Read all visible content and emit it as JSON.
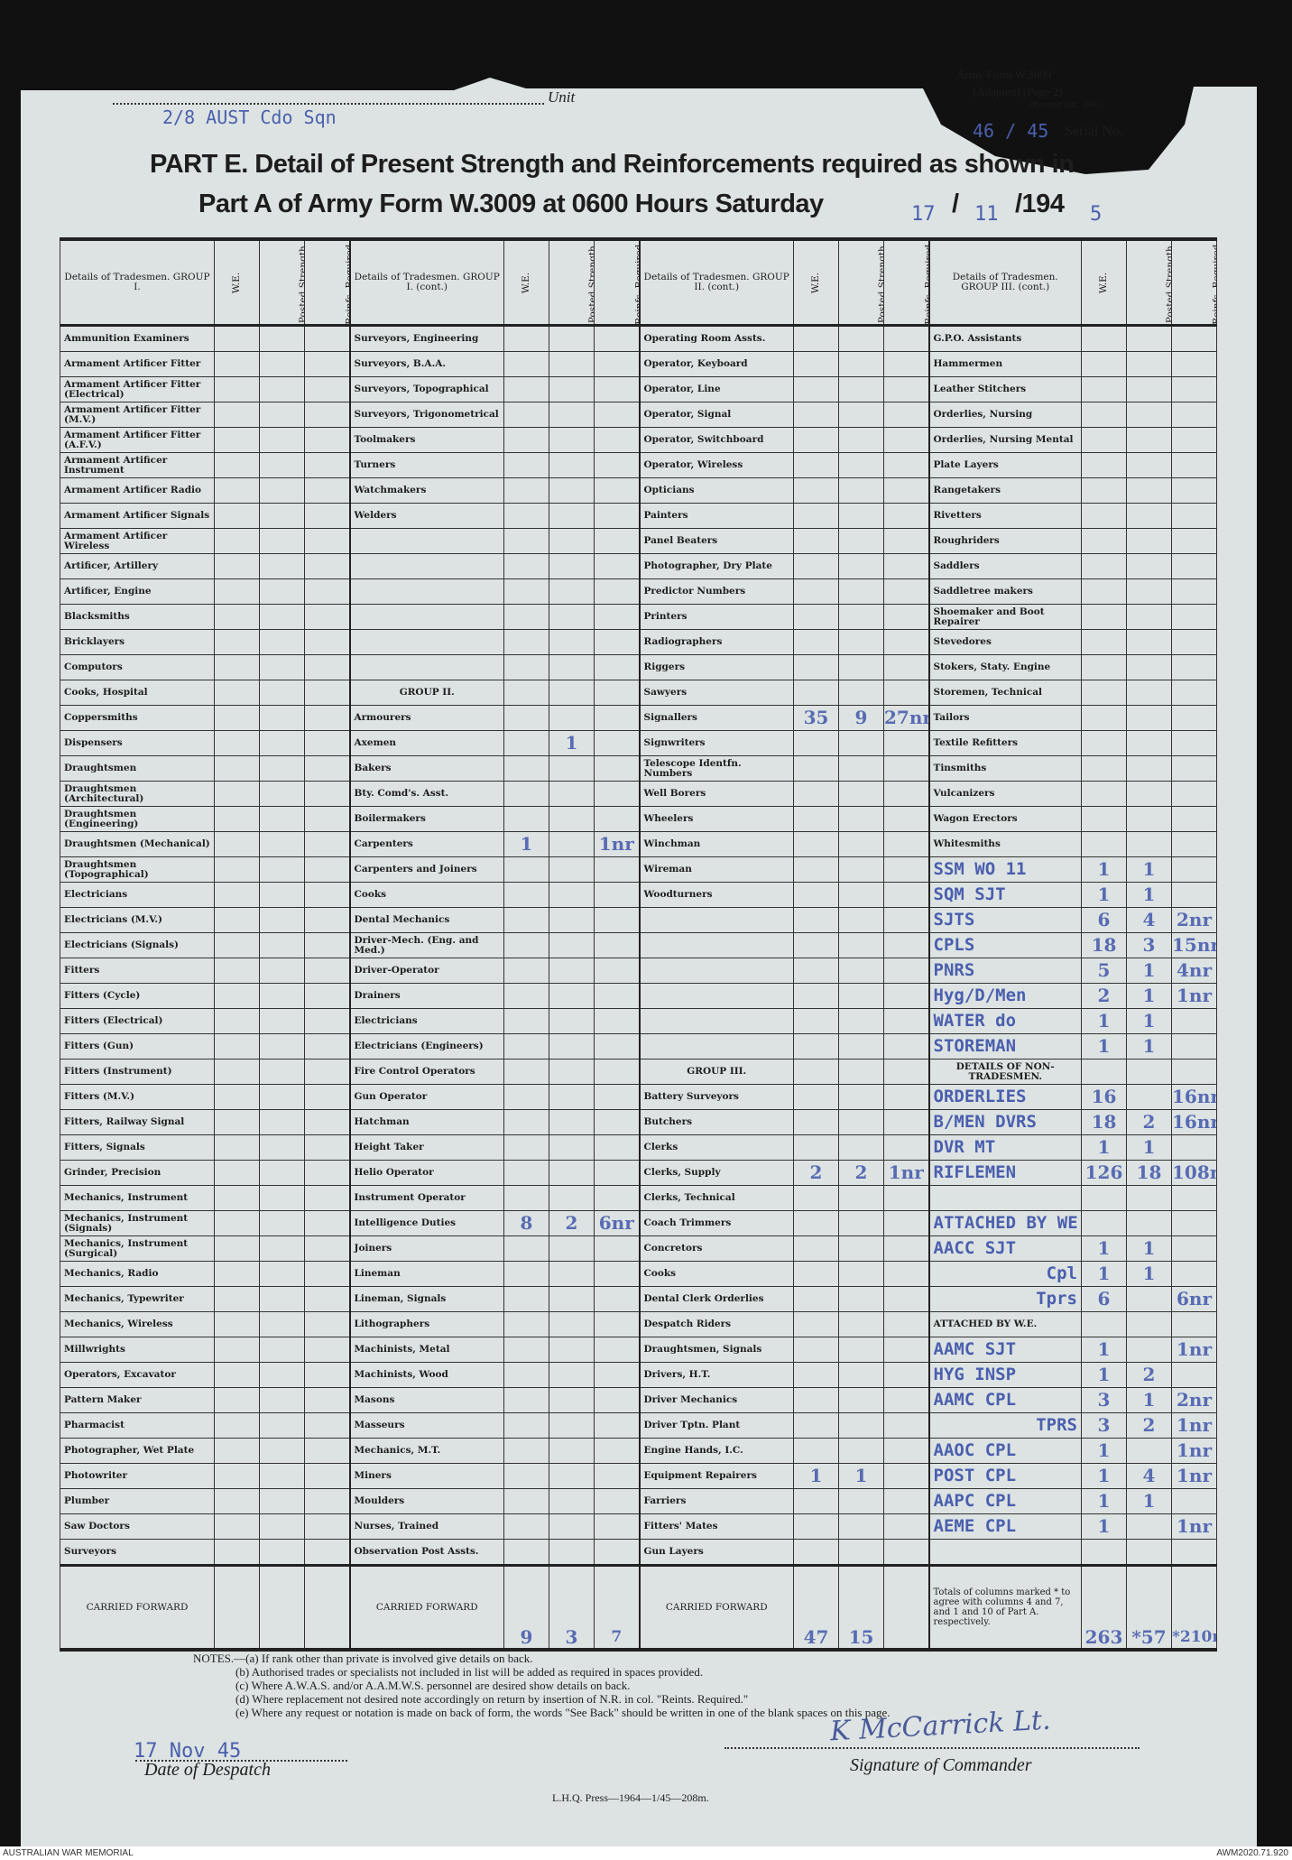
{
  "header": {
    "form_no": "Army Form W.3009",
    "adapted": "(Adapted) (Page 2)",
    "revised": "(Revised Jan., 1943)",
    "unit_label": "Unit",
    "unit_value": "2/8 AUST Cdo Sqn",
    "serial_label": "Serial No.",
    "serial_value": "46 / 45",
    "title_line1": "PART E.  Detail of Present Strength and Reinforcements required as shown in",
    "title_line2": "Part A of Army Form W.3009 at 0600 Hours Saturday",
    "date_day": "17",
    "date_month": "11",
    "date_year_prefix": "/194",
    "date_year_digit": "5",
    "date_sep": "/"
  },
  "columns": {
    "we": "W.E.",
    "posted": "Posted Strength.",
    "reinfs": "Reinfs. Required.",
    "groups": [
      "Details of Tradesmen. GROUP I.",
      "Details of Tradesmen. GROUP I. (cont.)",
      "Details of Tradesmen. GROUP II. (cont.)",
      "Details of Tradesmen. GROUP III. (cont.)"
    ]
  },
  "rows": [
    [
      [
        "Ammunition Examiners"
      ],
      [
        "Surveyors, Engineering"
      ],
      [
        "Operating Room Assts."
      ],
      [
        "G.P.O. Assistants"
      ]
    ],
    [
      [
        "Armament Artificer Fitter"
      ],
      [
        "Surveyors, B.A.A."
      ],
      [
        "Operator, Keyboard"
      ],
      [
        "Hammermen"
      ]
    ],
    [
      [
        "Armament Artificer Fitter (Electrical)"
      ],
      [
        "Surveyors, Topographical"
      ],
      [
        "Operator, Line"
      ],
      [
        "Leather Stitchers"
      ]
    ],
    [
      [
        "Armament Artificer Fitter (M.V.)"
      ],
      [
        "Surveyors, Trigonometrical"
      ],
      [
        "Operator, Signal"
      ],
      [
        "Orderlies, Nursing"
      ]
    ],
    [
      [
        "Armament Artificer Fitter (A.F.V.)"
      ],
      [
        "Toolmakers"
      ],
      [
        "Operator, Switchboard"
      ],
      [
        "Orderlies, Nursing Mental"
      ]
    ],
    [
      [
        "Armament Artificer Instrument"
      ],
      [
        "Turners"
      ],
      [
        "Operator, Wireless"
      ],
      [
        "Plate Layers"
      ]
    ],
    [
      [
        "Armament Artificer Radio"
      ],
      [
        "Watchmakers"
      ],
      [
        "Opticians"
      ],
      [
        "Rangetakers"
      ]
    ],
    [
      [
        "Armament Artificer Signals"
      ],
      [
        "Welders"
      ],
      [
        "Painters"
      ],
      [
        "Rivetters"
      ]
    ],
    [
      [
        "Armament Artificer Wireless"
      ],
      [
        ""
      ],
      [
        "Panel Beaters"
      ],
      [
        "Roughriders"
      ]
    ],
    [
      [
        "Artificer, Artillery"
      ],
      [
        ""
      ],
      [
        "Photographer, Dry Plate"
      ],
      [
        "Saddlers"
      ]
    ],
    [
      [
        "Artificer, Engine"
      ],
      [
        ""
      ],
      [
        "Predictor Numbers"
      ],
      [
        "Saddletree makers"
      ]
    ],
    [
      [
        "Blacksmiths"
      ],
      [
        ""
      ],
      [
        "Printers"
      ],
      [
        "Shoemaker and Boot Repairer"
      ]
    ],
    [
      [
        "Bricklayers"
      ],
      [
        ""
      ],
      [
        "Radiographers"
      ],
      [
        "Stevedores"
      ]
    ],
    [
      [
        "Computors"
      ],
      [
        ""
      ],
      [
        "Riggers"
      ],
      [
        "Stokers, Staty. Engine"
      ]
    ],
    [
      [
        "Cooks, Hospital"
      ],
      [
        "GROUP II.",
        "",
        "",
        "",
        "h"
      ],
      [
        "Sawyers"
      ],
      [
        "Storemen, Technical"
      ]
    ],
    [
      [
        "Coppersmiths"
      ],
      [
        "Armourers"
      ],
      [
        "Signallers",
        "35",
        "9",
        "27nr"
      ],
      [
        "Tailors"
      ]
    ],
    [
      [
        "Dispensers"
      ],
      [
        "Axemen",
        "",
        "1",
        ""
      ],
      [
        "Signwriters"
      ],
      [
        "Textile Refitters"
      ]
    ],
    [
      [
        "Draughtsmen"
      ],
      [
        "Bakers"
      ],
      [
        "Telescope Identfn. Numbers"
      ],
      [
        "Tinsmiths"
      ]
    ],
    [
      [
        "Draughtsmen (Architectural)"
      ],
      [
        "Bty. Comd's. Asst."
      ],
      [
        "Well Borers"
      ],
      [
        "Vulcanizers"
      ]
    ],
    [
      [
        "Draughtsmen (Engineering)"
      ],
      [
        "Boilermakers"
      ],
      [
        "Wheelers"
      ],
      [
        "Wagon Erectors"
      ]
    ],
    [
      [
        "Draughtsmen (Mechanical)"
      ],
      [
        "Carpenters",
        "1",
        "",
        "1nr"
      ],
      [
        "Winchman"
      ],
      [
        "Whitesmiths"
      ]
    ],
    [
      [
        "Draughtsmen (Topographical)"
      ],
      [
        "Carpenters and Joiners"
      ],
      [
        "Wireman"
      ],
      [
        "SSM WO 11",
        "1",
        "1",
        "",
        "t"
      ]
    ],
    [
      [
        "Electricians"
      ],
      [
        "Cooks"
      ],
      [
        "Woodturners"
      ],
      [
        "SQM SJT",
        "1",
        "1",
        "",
        "t"
      ]
    ],
    [
      [
        "Electricians (M.V.)"
      ],
      [
        "Dental Mechanics"
      ],
      [
        ""
      ],
      [
        "SJTS",
        "6",
        "4",
        "2nr",
        "t"
      ]
    ],
    [
      [
        "Electricians (Signals)"
      ],
      [
        "Driver-Mech. (Eng. and Med.)"
      ],
      [
        ""
      ],
      [
        "CPLS",
        "18",
        "3",
        "15nr",
        "t"
      ]
    ],
    [
      [
        "Fitters"
      ],
      [
        "Driver-Operator"
      ],
      [
        ""
      ],
      [
        "PNRS",
        "5",
        "1",
        "4nr",
        "t"
      ]
    ],
    [
      [
        "Fitters (Cycle)"
      ],
      [
        "Drainers"
      ],
      [
        ""
      ],
      [
        "Hyg/D/Men",
        "2",
        "1",
        "1nr",
        "t"
      ]
    ],
    [
      [
        "Fitters (Electrical)"
      ],
      [
        "Electricians"
      ],
      [
        ""
      ],
      [
        "WATER do",
        "1",
        "1",
        "",
        "t"
      ]
    ],
    [
      [
        "Fitters (Gun)"
      ],
      [
        "Electricians (Engineers)"
      ],
      [
        ""
      ],
      [
        "STOREMAN",
        "1",
        "1",
        "",
        "t"
      ]
    ],
    [
      [
        "Fitters (Instrument)"
      ],
      [
        "Fire Control Operators"
      ],
      [
        "GROUP III.",
        "",
        "",
        "",
        "h"
      ],
      [
        "DETAILS OF NON-TRADESMEN.",
        "",
        "",
        "",
        "h"
      ]
    ],
    [
      [
        "Fitters (M.V.)"
      ],
      [
        "Gun Operator"
      ],
      [
        "Battery Surveyors"
      ],
      [
        "ORDERLIES",
        "16",
        "",
        "16nr",
        "t"
      ]
    ],
    [
      [
        "Fitters, Railway Signal"
      ],
      [
        "Hatchman"
      ],
      [
        "Butchers"
      ],
      [
        "B/MEN DVRS",
        "18",
        "2",
        "16nr",
        "t"
      ]
    ],
    [
      [
        "Fitters, Signals"
      ],
      [
        "Height Taker"
      ],
      [
        "Clerks"
      ],
      [
        "DVR MT",
        "1",
        "1",
        "",
        "t"
      ]
    ],
    [
      [
        "Grinder, Precision"
      ],
      [
        "Helio Operator"
      ],
      [
        "Clerks, Supply",
        "2",
        "2",
        "1nr"
      ],
      [
        "RIFLEMEN",
        "126",
        "18",
        "108nr",
        "t"
      ]
    ],
    [
      [
        "Mechanics, Instrument"
      ],
      [
        "Instrument Operator"
      ],
      [
        "Clerks, Technical"
      ],
      [
        ""
      ]
    ],
    [
      [
        "Mechanics, Instrument (Signals)"
      ],
      [
        "Intelligence Duties",
        "8",
        "2",
        "6nr"
      ],
      [
        "Coach Trimmers"
      ],
      [
        "ATTACHED BY WE",
        "",
        "",
        "",
        "t"
      ]
    ],
    [
      [
        "Mechanics, Instrument (Surgical)"
      ],
      [
        "Joiners"
      ],
      [
        "Concretors"
      ],
      [
        "AACC SJT",
        "1",
        "1",
        "",
        "t"
      ]
    ],
    [
      [
        "Mechanics, Radio"
      ],
      [
        "Lineman"
      ],
      [
        "Cooks"
      ],
      [
        "Cpl",
        "1",
        "1",
        "",
        "tr"
      ]
    ],
    [
      [
        "Mechanics, Typewriter"
      ],
      [
        "Lineman, Signals"
      ],
      [
        "Dental Clerk Orderlies"
      ],
      [
        "Tprs",
        "6",
        "",
        "6nr",
        "tr"
      ]
    ],
    [
      [
        "Mechanics, Wireless"
      ],
      [
        "Lithographers"
      ],
      [
        "Despatch Riders"
      ],
      [
        "ATTACHED BY W.E."
      ]
    ],
    [
      [
        "Millwrights"
      ],
      [
        "Machinists, Metal"
      ],
      [
        "Draughtsmen, Signals"
      ],
      [
        "AAMC SJT",
        "1",
        "",
        "1nr",
        "t"
      ]
    ],
    [
      [
        "Operators, Excavator"
      ],
      [
        "Machinists, Wood"
      ],
      [
        "Drivers, H.T."
      ],
      [
        "HYG INSP",
        "1",
        "2",
        "",
        "t"
      ]
    ],
    [
      [
        "Pattern Maker"
      ],
      [
        "Masons"
      ],
      [
        "Driver Mechanics"
      ],
      [
        "AAMC CPL",
        "3",
        "1",
        "2nr",
        "t"
      ]
    ],
    [
      [
        "Pharmacist"
      ],
      [
        "Masseurs"
      ],
      [
        "Driver Tptn. Plant"
      ],
      [
        "TPRS",
        "3",
        "2",
        "1nr",
        "tr"
      ]
    ],
    [
      [
        "Photographer, Wet Plate"
      ],
      [
        "Mechanics, M.T."
      ],
      [
        "Engine Hands, I.C."
      ],
      [
        "AAOC CPL",
        "1",
        "",
        "1nr",
        "t"
      ]
    ],
    [
      [
        "Photowriter"
      ],
      [
        "Miners"
      ],
      [
        "Equipment Repairers",
        "1",
        "1",
        ""
      ],
      [
        "POST CPL",
        "1",
        "4",
        "1nr",
        "t"
      ]
    ],
    [
      [
        "Plumber"
      ],
      [
        "Moulders"
      ],
      [
        "Farriers"
      ],
      [
        "AAPC CPL",
        "1",
        "1",
        "",
        "t"
      ]
    ],
    [
      [
        "Saw Doctors"
      ],
      [
        "Nurses, Trained"
      ],
      [
        "Fitters' Mates"
      ],
      [
        "AEME CPL",
        "1",
        "",
        "1nr",
        "t"
      ]
    ],
    [
      [
        "Surveyors"
      ],
      [
        "Observation Post Assts."
      ],
      [
        "Gun Layers"
      ],
      [
        ""
      ]
    ]
  ],
  "carried_forward": [
    [
      "CARRIED FORWARD",
      "",
      "",
      ""
    ],
    [
      "CARRIED FORWARD",
      "9",
      "3",
      "7"
    ],
    [
      "CARRIED FORWARD",
      "47",
      "15",
      ""
    ],
    [
      "Totals of columns marked * to agree with columns 4 and 7, and 1 and 10 of Part A. respectively.",
      "263",
      "*57",
      "*210nr"
    ]
  ],
  "notes": [
    "NOTES.—(a) If rank other than private is involved give details on back.",
    "(b) Authorised trades or specialists not included in list will be added as required in spaces provided.",
    "(c) Where A.W.A.S. and/or A.A.M.W.S. personnel are desired show details on back.",
    "(d) Where replacement not desired note accordingly on return by insertion of N.R. in col. \"Reints. Required.\"",
    "(e) Where any request or notation is made on back of form, the words \"See Back\" should be written in one of the blank spaces on this page."
  ],
  "footer_form": {
    "despatch_value": "17 Nov 45",
    "despatch_label": "Date of Despatch",
    "signature_label": "Signature of Commander",
    "signature": "K McCarrick Lt.",
    "press": "L.H.Q. Press—1964—1/45—208m."
  },
  "archive": {
    "left": "AUSTRALIAN WAR MEMORIAL",
    "right": "AWM2020.71.920"
  },
  "colors": {
    "paper": "#dde3e2",
    "typewriter_ink": "#4a5fae",
    "background": "#111111"
  }
}
